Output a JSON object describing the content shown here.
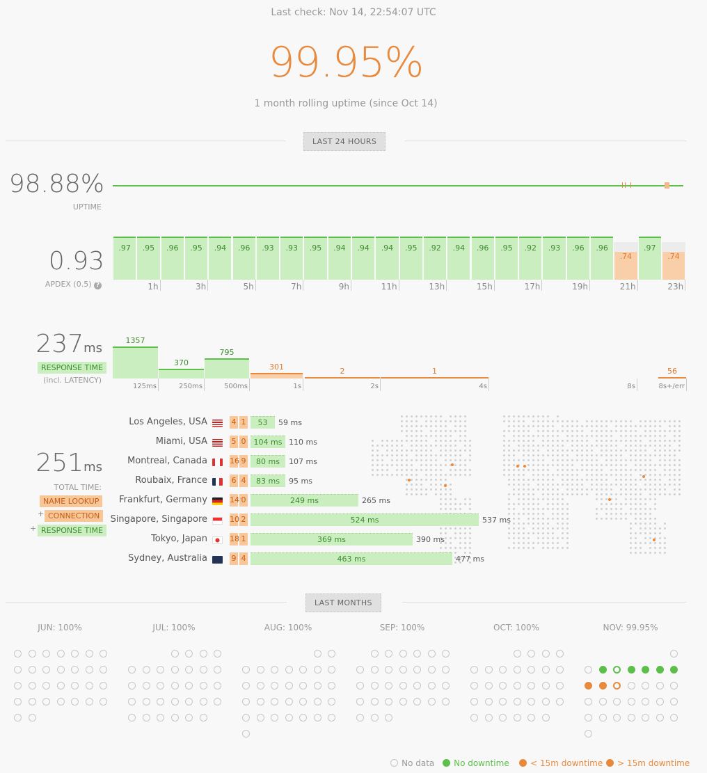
{
  "last_check": "Last check: Nov 14, 22:54:07 UTC",
  "uptime_big": "99.95%",
  "rolling_text": "1 month rolling uptime (since Oct 14)",
  "last24_label": "LAST 24 HOURS",
  "uptime24": {
    "value": "98.88%",
    "label": "UPTIME"
  },
  "apdex": {
    "value": "0.93",
    "label": "APDEX (0.5)",
    "bars": [
      ".97",
      ".95",
      ".96",
      ".95",
      ".94",
      ".96",
      ".93",
      ".93",
      ".95",
      ".94",
      ".94",
      ".94",
      ".95",
      ".92",
      ".94",
      ".96",
      ".95",
      ".92",
      ".93",
      ".96",
      ".96",
      ".74",
      ".97",
      ".74"
    ],
    "ticks": [
      "1h",
      "3h",
      "5h",
      "7h",
      "9h",
      "11h",
      "13h",
      "15h",
      "17h",
      "19h",
      "21h",
      "23h"
    ]
  },
  "response": {
    "value": "237",
    "unit": "ms",
    "label": "RESPONSE TIME",
    "sub": "(incl. LATENCY)",
    "bins": [
      "1357",
      "370",
      "795",
      "301",
      "2",
      "1",
      "56"
    ],
    "ticks": [
      "125ms",
      "250ms",
      "500ms",
      "1s",
      "2s",
      "4s",
      "8s",
      "8s+/err"
    ]
  },
  "total": {
    "value": "251",
    "unit": "ms",
    "label": "TOTAL TIME:",
    "name_lookup": "NAME LOOKUP",
    "connection": "CONNECTION",
    "response_time": "RESPONSE TIME",
    "plus": "+"
  },
  "locations": [
    {
      "name": "Los Angeles, USA",
      "a": "4",
      "b": "1",
      "rt": "53",
      "total": "59 ms"
    },
    {
      "name": "Miami, USA",
      "a": "5",
      "b": "0",
      "rt": "104 ms",
      "total": "110 ms"
    },
    {
      "name": "Montreal, Canada",
      "a": "16",
      "b": "9",
      "rt": "80 ms",
      "total": "107 ms"
    },
    {
      "name": "Roubaix, France",
      "a": "6",
      "b": "4",
      "rt": "83 ms",
      "total": "95 ms"
    },
    {
      "name": "Frankfurt, Germany",
      "a": "14",
      "b": "0",
      "rt": "249 ms",
      "total": "265 ms"
    },
    {
      "name": "Singapore, Singapore",
      "a": "10",
      "b": "2",
      "rt": "524 ms",
      "total": "537 ms"
    },
    {
      "name": "Tokyo, Japan",
      "a": "18",
      "b": "1",
      "rt": "369 ms",
      "total": "390 ms"
    },
    {
      "name": "Sydney, Australia",
      "a": "9",
      "b": "4",
      "rt": "463 ms",
      "total": "477 ms"
    }
  ],
  "last_months_label": "LAST MONTHS",
  "months": [
    {
      "title": "JUN: 100%"
    },
    {
      "title": "JUL: 100%"
    },
    {
      "title": "AUG: 100%"
    },
    {
      "title": "SEP: 100%"
    },
    {
      "title": "OCT: 100%"
    },
    {
      "title": "NOV: 99.95%"
    }
  ],
  "legend": {
    "no_data": "No data",
    "no_downtime": "No downtime",
    "lt15": "< 15m downtime",
    "gt15": "> 15m downtime"
  },
  "colors": {
    "accent": "#e8893c",
    "ok": "#5cbf4a",
    "ok_fill": "#cbeec0",
    "warn_fill": "#f8cfa8"
  }
}
